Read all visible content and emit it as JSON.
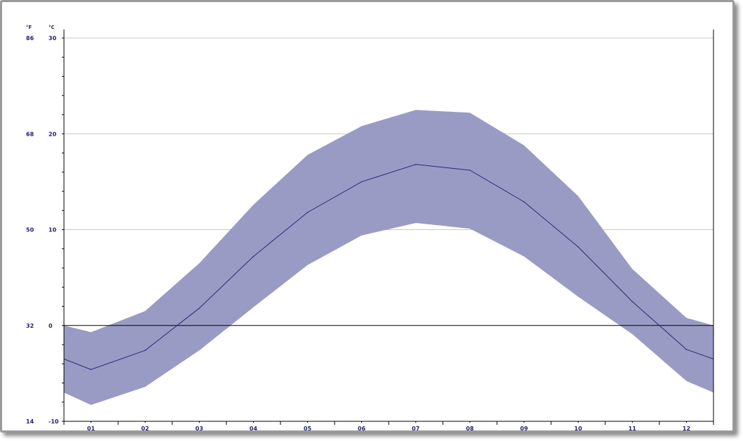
{
  "chart_data": {
    "type": "area",
    "title": "",
    "xlabel": "",
    "ylabel": "",
    "unit_left": "°F",
    "unit_right": "°C",
    "categories": [
      "01",
      "02",
      "03",
      "04",
      "05",
      "06",
      "07",
      "08",
      "09",
      "10",
      "11",
      "12"
    ],
    "y_ticks_c": [
      "-10",
      "0",
      "10",
      "20",
      "30"
    ],
    "y_ticks_f": [
      "14",
      "32",
      "50",
      "68",
      "86"
    ],
    "ylim": [
      -10,
      30
    ],
    "grid": true,
    "legend": "none",
    "x_edges": [
      0.5,
      12.5
    ],
    "edge_values": {
      "mean": [
        -3.5,
        -3.5
      ],
      "high": [
        0.0,
        0.0
      ],
      "low": [
        -7.0,
        -7.0
      ]
    },
    "series": [
      {
        "name": "",
        "role": "mean",
        "values": [
          -4.6,
          -2.6,
          1.8,
          7.2,
          11.8,
          15.0,
          16.8,
          16.2,
          12.9,
          8.2,
          2.5,
          -2.5
        ]
      },
      {
        "name": "",
        "role": "high",
        "values": [
          -0.7,
          1.5,
          6.5,
          12.6,
          17.8,
          20.8,
          22.5,
          22.2,
          18.8,
          13.5,
          5.9,
          0.8
        ]
      },
      {
        "name": "",
        "role": "low",
        "values": [
          -8.3,
          -6.4,
          -2.6,
          1.9,
          6.3,
          9.4,
          10.7,
          10.1,
          7.2,
          3.0,
          -0.9,
          -5.8
        ]
      }
    ],
    "colors": {
      "band": "#9a9bc4",
      "mean_line": "#2a2a78",
      "gridline": "#c8c8c8",
      "zero_line": "#000000",
      "axis": "#000000",
      "text": "#23236e"
    }
  }
}
